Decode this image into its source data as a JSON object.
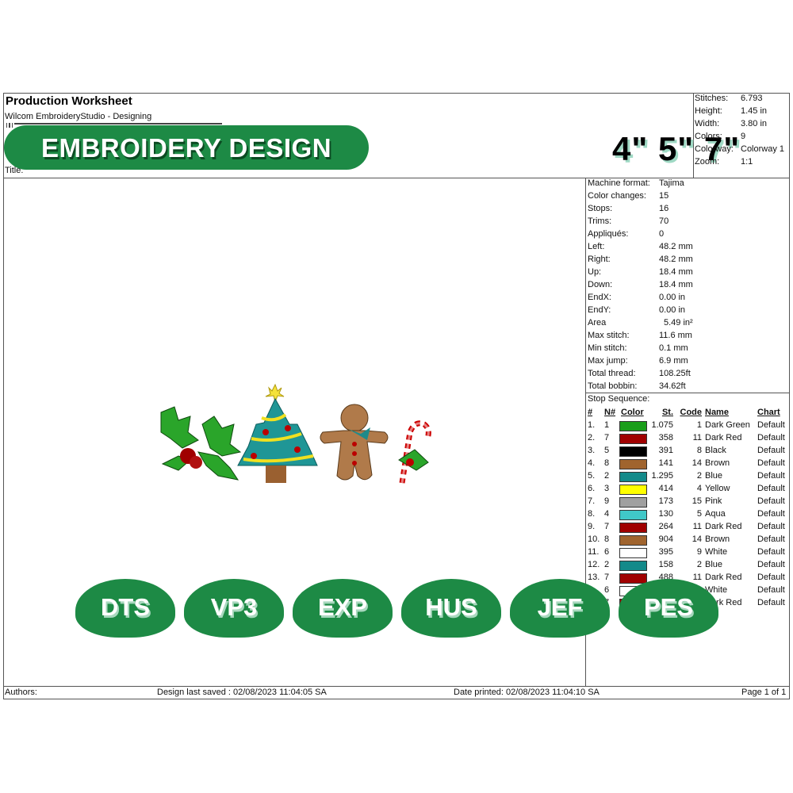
{
  "header": {
    "title": "Production Worksheet",
    "subtitle": "Wilcom EmbroideryStudio - Designing",
    "title_label": "Title:"
  },
  "banner": {
    "text": "EMBROIDERY DESIGN",
    "sizes": "4\" 5\" 7\""
  },
  "summary": [
    [
      "Stitches:",
      "6.793"
    ],
    [
      "Height:",
      "1.45 in"
    ],
    [
      "Width:",
      "3.80 in"
    ],
    [
      "Colors:",
      "9"
    ],
    [
      "Colorway:",
      "Colorway 1"
    ],
    [
      "Zoom:",
      "1:1"
    ]
  ],
  "machine_info": [
    [
      "Machine format:",
      "Tajima"
    ],
    [
      "Color changes:",
      "15"
    ],
    [
      "Stops:",
      "16"
    ],
    [
      "Trims:",
      "70"
    ],
    [
      "Appliqués:",
      "0"
    ],
    [
      "Left:",
      "48.2 mm"
    ],
    [
      "Right:",
      "48.2 mm"
    ],
    [
      "Up:",
      "18.4 mm"
    ],
    [
      "Down:",
      "18.4 mm"
    ],
    [
      "EndX:",
      "0.00 in"
    ],
    [
      "EndY:",
      "0.00 in"
    ],
    [
      "Area",
      "5.49 in²"
    ],
    [
      "Max stitch:",
      "11.6 mm"
    ],
    [
      "Min stitch:",
      "0.1 mm"
    ],
    [
      "Max jump:",
      "6.9 mm"
    ],
    [
      "Total thread:",
      "108.25ft"
    ],
    [
      "Total bobbin:",
      "34.62ft"
    ]
  ],
  "stop_sequence": {
    "label": "Stop Sequence:",
    "headers": [
      "#",
      "N#",
      "Color",
      "St.",
      "Code",
      "Name",
      "Chart"
    ],
    "rows": [
      {
        "index": "1.",
        "needle": "1",
        "color": "#1a9e1a",
        "stitches": "1.075",
        "code": "1",
        "name": "Dark Green",
        "chart": "Default"
      },
      {
        "index": "2.",
        "needle": "7",
        "color": "#a00000",
        "stitches": "358",
        "code": "11",
        "name": "Dark Red",
        "chart": "Default"
      },
      {
        "index": "3.",
        "needle": "5",
        "color": "#000000",
        "stitches": "391",
        "code": "8",
        "name": "Black",
        "chart": "Default"
      },
      {
        "index": "4.",
        "needle": "8",
        "color": "#a0642e",
        "stitches": "141",
        "code": "14",
        "name": "Brown",
        "chart": "Default"
      },
      {
        "index": "5.",
        "needle": "2",
        "color": "#138a8a",
        "stitches": "1.295",
        "code": "2",
        "name": "Blue",
        "chart": "Default"
      },
      {
        "index": "6.",
        "needle": "3",
        "color": "#ffff00",
        "stitches": "414",
        "code": "4",
        "name": "Yellow",
        "chart": "Default"
      },
      {
        "index": "7.",
        "needle": "9",
        "color": "#a0a0a0",
        "stitches": "173",
        "code": "15",
        "name": "Pink",
        "chart": "Default"
      },
      {
        "index": "8.",
        "needle": "4",
        "color": "#40c8c8",
        "stitches": "130",
        "code": "5",
        "name": "Aqua",
        "chart": "Default"
      },
      {
        "index": "9.",
        "needle": "7",
        "color": "#a00000",
        "stitches": "264",
        "code": "11",
        "name": "Dark Red",
        "chart": "Default"
      },
      {
        "index": "10.",
        "needle": "8",
        "color": "#a0642e",
        "stitches": "904",
        "code": "14",
        "name": "Brown",
        "chart": "Default"
      },
      {
        "index": "11.",
        "needle": "6",
        "color": "#ffffff",
        "stitches": "395",
        "code": "9",
        "name": "White",
        "chart": "Default"
      },
      {
        "index": "12.",
        "needle": "2",
        "color": "#138a8a",
        "stitches": "158",
        "code": "2",
        "name": "Blue",
        "chart": "Default"
      },
      {
        "index": "13.",
        "needle": "7",
        "color": "#a00000",
        "stitches": "488",
        "code": "11",
        "name": "Dark Red",
        "chart": "Default"
      },
      {
        "needle": "6",
        "color": "#ffffff",
        "name": "White",
        "chart": "Default"
      },
      {
        "needle": "7",
        "color": "#a00000",
        "name": "Dark Red",
        "chart": "Default"
      }
    ]
  },
  "badges": [
    "DTS",
    "VP3",
    "EXP",
    "HUS",
    "JEF",
    "PES"
  ],
  "footer": {
    "authors": "Authors:",
    "last_saved": "Design last saved : 02/08/2023 11:04:05 SA",
    "date_printed": "Date printed: 02/08/2023 11:04:10 SA",
    "page": "Page 1 of 1"
  }
}
